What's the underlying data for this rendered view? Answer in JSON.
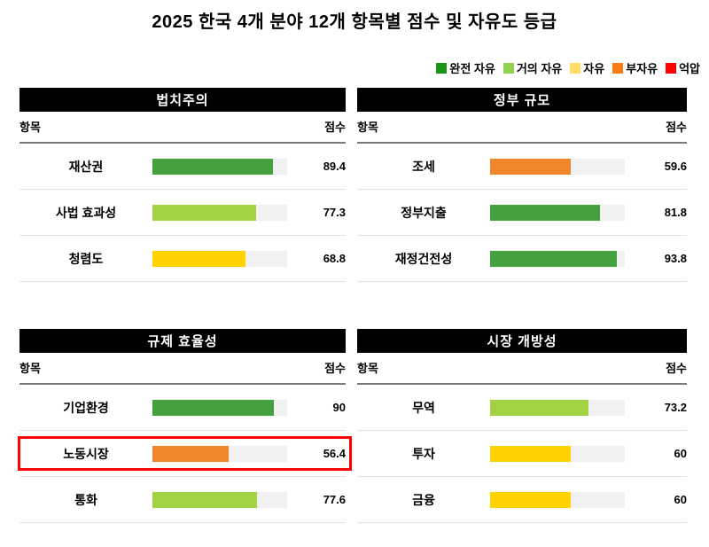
{
  "title": "2025 한국 4개 분야 12개 항목별 점수 및 자유도 등급",
  "legend": [
    {
      "label": "완전 자유",
      "color": "#1a951a"
    },
    {
      "label": "거의 자유",
      "color": "#92d050"
    },
    {
      "label": "자유",
      "color": "#ffdd66"
    },
    {
      "label": "부자유",
      "color": "#f87b14"
    },
    {
      "label": "억압",
      "color": "#ff0000"
    }
  ],
  "columns": {
    "item": "항목",
    "score": "점수"
  },
  "panels": [
    {
      "title": "법치주의",
      "rows": [
        {
          "label": "재산권",
          "score": "89.4",
          "value": 89.4,
          "color": "#44a13f",
          "highlight": false
        },
        {
          "label": "사법 효과성",
          "score": "77.3",
          "value": 77.3,
          "color": "#a2d144",
          "highlight": false
        },
        {
          "label": "청렴도",
          "score": "68.8",
          "value": 68.8,
          "color": "#ffd200",
          "highlight": false
        }
      ]
    },
    {
      "title": "정부 규모",
      "rows": [
        {
          "label": "조세",
          "score": "59.6",
          "value": 59.6,
          "color": "#f0862c",
          "highlight": false
        },
        {
          "label": "정부지출",
          "score": "81.8",
          "value": 81.8,
          "color": "#44a13f",
          "highlight": false
        },
        {
          "label": "재정건전성",
          "score": "93.8",
          "value": 93.8,
          "color": "#44a13f",
          "highlight": false
        }
      ]
    },
    {
      "title": "규제 효율성",
      "rows": [
        {
          "label": "기업환경",
          "score": "90",
          "value": 90,
          "color": "#44a13f",
          "highlight": false
        },
        {
          "label": "노동시장",
          "score": "56.4",
          "value": 56.4,
          "color": "#f0862c",
          "highlight": true
        },
        {
          "label": "통화",
          "score": "77.6",
          "value": 77.6,
          "color": "#a2d144",
          "highlight": false
        }
      ]
    },
    {
      "title": "시장 개방성",
      "rows": [
        {
          "label": "무역",
          "score": "73.2",
          "value": 73.2,
          "color": "#a2d144",
          "highlight": false
        },
        {
          "label": "투자",
          "score": "60",
          "value": 60,
          "color": "#ffd200",
          "highlight": false
        },
        {
          "label": "금융",
          "score": "60",
          "value": 60,
          "color": "#ffd200",
          "highlight": false
        }
      ]
    }
  ],
  "chart_data": {
    "type": "bar",
    "title": "2025 한국 4개 분야 12개 항목별 점수 및 자유도 등급",
    "orientation": "horizontal",
    "xlim": [
      0,
      100
    ],
    "legend_position": "top-right",
    "legend": [
      "완전 자유",
      "거의 자유",
      "자유",
      "부자유",
      "억압"
    ],
    "legend_colors": [
      "#1a951a",
      "#92d050",
      "#ffdd66",
      "#f87b14",
      "#ff0000"
    ],
    "groups": [
      {
        "category": "법치주의",
        "items": [
          {
            "label": "재산권",
            "value": 89.4,
            "grade": "완전 자유"
          },
          {
            "label": "사법 효과성",
            "value": 77.3,
            "grade": "거의 자유"
          },
          {
            "label": "청렴도",
            "value": 68.8,
            "grade": "자유"
          }
        ]
      },
      {
        "category": "정부 규모",
        "items": [
          {
            "label": "조세",
            "value": 59.6,
            "grade": "부자유"
          },
          {
            "label": "정부지출",
            "value": 81.8,
            "grade": "완전 자유"
          },
          {
            "label": "재정건전성",
            "value": 93.8,
            "grade": "완전 자유"
          }
        ]
      },
      {
        "category": "규제 효율성",
        "items": [
          {
            "label": "기업환경",
            "value": 90,
            "grade": "완전 자유"
          },
          {
            "label": "노동시장",
            "value": 56.4,
            "grade": "부자유",
            "highlighted": true
          },
          {
            "label": "통화",
            "value": 77.6,
            "grade": "거의 자유"
          }
        ]
      },
      {
        "category": "시장 개방성",
        "items": [
          {
            "label": "무역",
            "value": 73.2,
            "grade": "거의 자유"
          },
          {
            "label": "투자",
            "value": 60,
            "grade": "자유"
          },
          {
            "label": "금융",
            "value": 60,
            "grade": "자유"
          }
        ]
      }
    ]
  }
}
